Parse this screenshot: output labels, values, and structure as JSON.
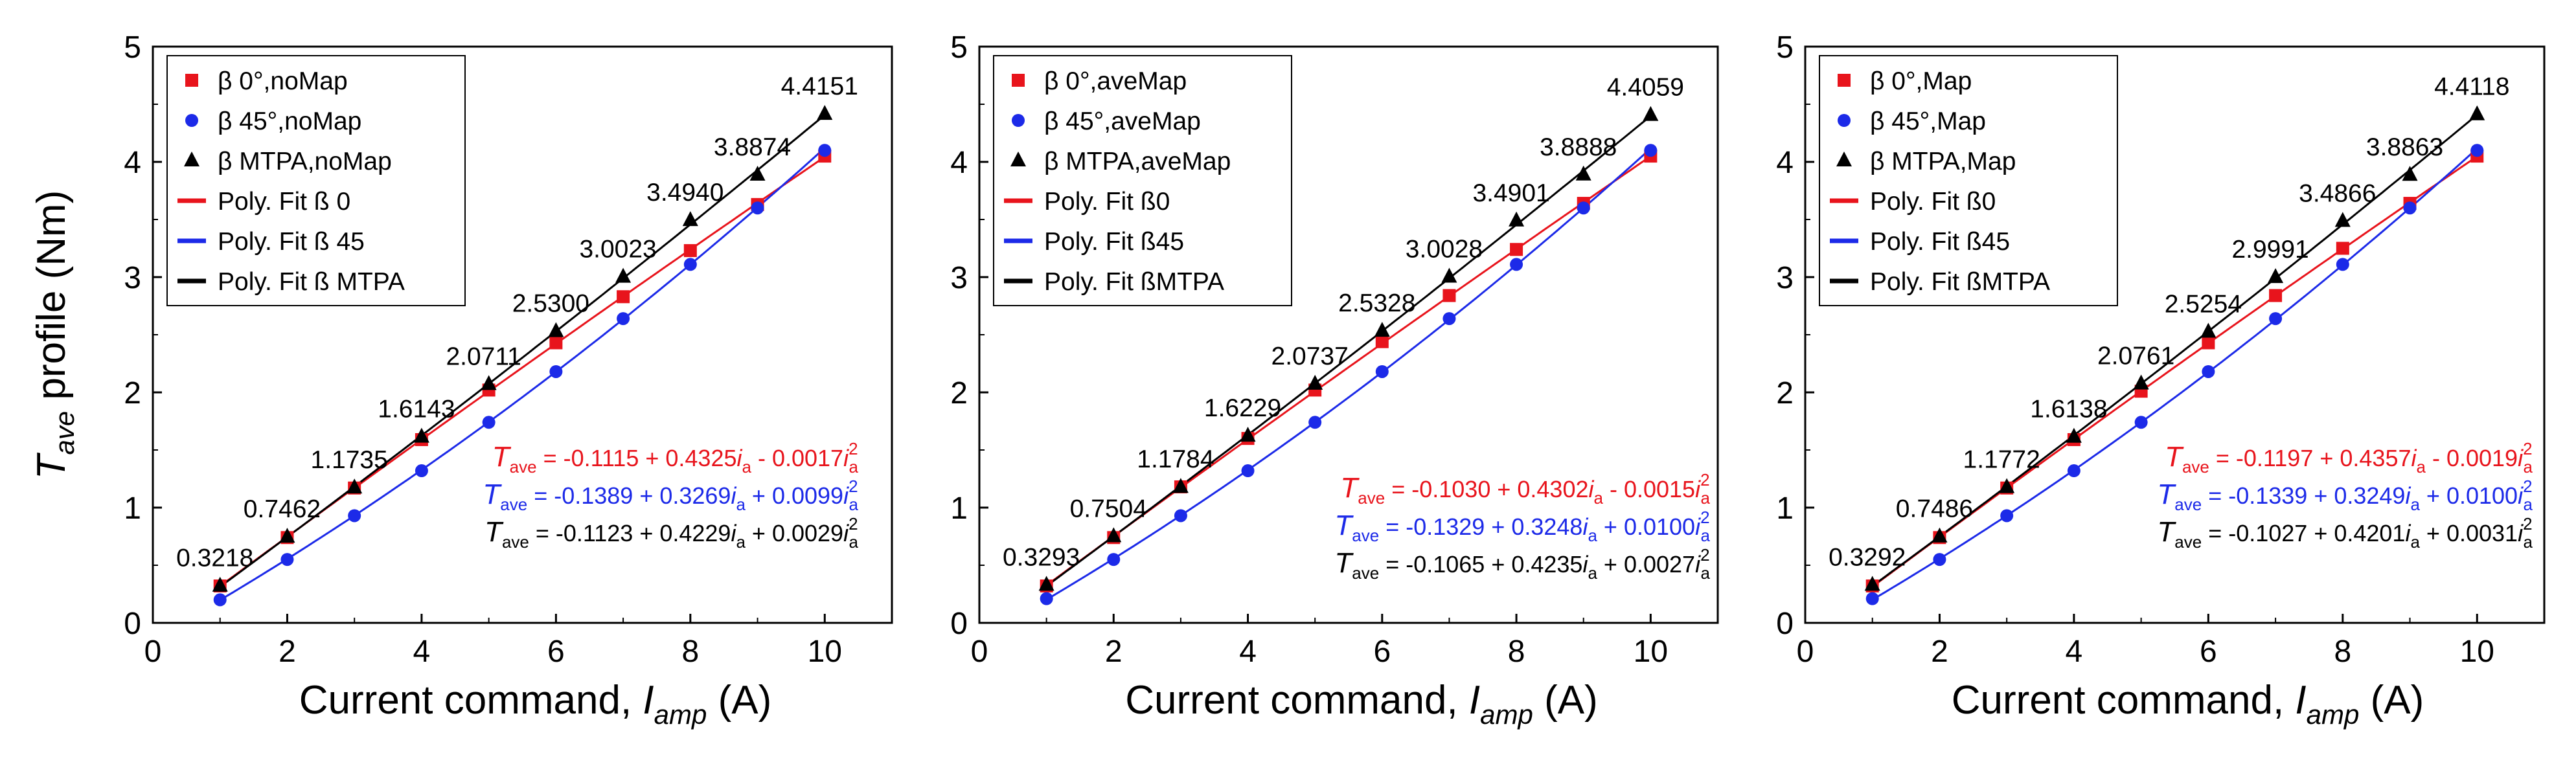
{
  "figure": {
    "ylabel_main": "T",
    "ylabel_sub": "ave",
    "ylabel_rest": " profile (Nm)",
    "xlabel_main": "Current command, ",
    "xlabel_var": "I",
    "xlabel_sub": "amp",
    "xlabel_unit": " (A)"
  },
  "chart_data": [
    {
      "type": "scatter",
      "title": "",
      "xlabel": "Current command, I_amp (A)",
      "ylabel": "T_ave profile (Nm)",
      "xlim": [
        0,
        11
      ],
      "ylim": [
        0,
        5
      ],
      "xticks": [
        "0",
        "2",
        "4",
        "6",
        "8",
        "10"
      ],
      "yticks": [
        "0",
        "1",
        "2",
        "3",
        "4",
        "5"
      ],
      "x": [
        1,
        2,
        3,
        4,
        5,
        6,
        7,
        8,
        9,
        10
      ],
      "series": [
        {
          "name": "β 0°,noMap",
          "marker": "square",
          "color": "#e8141c",
          "values": [
            0.32,
            0.74,
            1.17,
            1.59,
            2.02,
            2.43,
            2.83,
            3.23,
            3.63,
            4.05
          ]
        },
        {
          "name": "β 45°,noMap",
          "marker": "circle",
          "color": "#1c2ae8",
          "values": [
            0.2,
            0.55,
            0.93,
            1.32,
            1.74,
            2.18,
            2.64,
            3.11,
            3.6,
            4.1
          ]
        },
        {
          "name": "β MTPA,noMap",
          "marker": "triangle",
          "color": "#000000",
          "values": [
            0.3218,
            0.7462,
            1.1735,
            1.6143,
            2.0711,
            2.53,
            3.0023,
            3.494,
            3.8874,
            4.4151
          ]
        }
      ],
      "fits": [
        {
          "name": "Poly. Fit ß 0",
          "color": "#e8141c",
          "coef": [
            -0.1115,
            0.4325,
            -0.0017
          ]
        },
        {
          "name": "Poly. Fit ß 45",
          "color": "#1c2ae8",
          "coef": [
            -0.1389,
            0.3269,
            0.0099
          ]
        },
        {
          "name": "Poly. Fit ß MTPA",
          "color": "#000000",
          "coef": [
            -0.1123,
            0.4229,
            0.0029
          ]
        }
      ],
      "point_labels": [
        "0.3218",
        "0.7462",
        "1.1735",
        "1.6143",
        "2.0711",
        "2.5300",
        "3.0023",
        "3.4940",
        "3.8874",
        "4.4151"
      ],
      "equations": [
        {
          "color": "#e8141c",
          "prefix": "T",
          "sub": "ave",
          "text": " = -0.1115 + 0.4325",
          "v1": "i",
          "s1": "a",
          "text2": " - 0.0017",
          "v2": "i",
          "sup": "2",
          "s2": "a"
        },
        {
          "color": "#1c2ae8",
          "prefix": "T",
          "sub": "ave",
          "text": " = -0.1389 + 0.3269",
          "v1": "i",
          "s1": "a",
          "text2": " + 0.0099",
          "v2": "i",
          "sup": "2",
          "s2": "a"
        },
        {
          "color": "#000000",
          "prefix": "T",
          "sub": "ave",
          "text": " = -0.1123 + 0.4229",
          "v1": "i",
          "s1": "a",
          "text2": " + 0.0029",
          "v2": "i",
          "sup": "2",
          "s2": "a"
        }
      ]
    },
    {
      "type": "scatter",
      "title": "",
      "xlabel": "Current command, I_amp (A)",
      "ylabel": "",
      "xlim": [
        0,
        11
      ],
      "ylim": [
        0,
        5
      ],
      "xticks": [
        "0",
        "2",
        "4",
        "6",
        "8",
        "10"
      ],
      "yticks": [
        "0",
        "1",
        "2",
        "3",
        "4",
        "5"
      ],
      "x": [
        1,
        2,
        3,
        4,
        5,
        6,
        7,
        8,
        9,
        10
      ],
      "series": [
        {
          "name": "β 0°,aveMap",
          "marker": "square",
          "color": "#e8141c",
          "values": [
            0.32,
            0.74,
            1.18,
            1.6,
            2.02,
            2.44,
            2.84,
            3.24,
            3.64,
            4.05
          ]
        },
        {
          "name": "β 45°,aveMap",
          "marker": "circle",
          "color": "#1c2ae8",
          "values": [
            0.21,
            0.55,
            0.93,
            1.32,
            1.74,
            2.18,
            2.64,
            3.11,
            3.6,
            4.1
          ]
        },
        {
          "name": "β MTPA,aveMap",
          "marker": "triangle",
          "color": "#000000",
          "values": [
            0.3293,
            0.7504,
            1.1784,
            1.6229,
            2.0737,
            2.5328,
            3.0028,
            3.4901,
            3.8888,
            4.4059
          ]
        }
      ],
      "fits": [
        {
          "name": "Poly. Fit ß0",
          "color": "#e8141c",
          "coef": [
            -0.103,
            0.4302,
            -0.0015
          ]
        },
        {
          "name": "Poly. Fit ß45",
          "color": "#1c2ae8",
          "coef": [
            -0.1329,
            0.3248,
            0.01
          ]
        },
        {
          "name": "Poly. Fit ßMTPA",
          "color": "#000000",
          "coef": [
            -0.1065,
            0.4235,
            0.0027
          ]
        }
      ],
      "point_labels": [
        "0.3293",
        "0.7504",
        "1.1784",
        "1.6229",
        "2.0737",
        "2.5328",
        "3.0028",
        "3.4901",
        "3.8888",
        "4.4059"
      ],
      "equations": [
        {
          "color": "#e8141c",
          "prefix": "T",
          "sub": "ave",
          "text": " = -0.1030 + 0.4302",
          "v1": "i",
          "s1": "a",
          "text2": " - 0.0015",
          "v2": "i",
          "sup": "2",
          "s2": "a"
        },
        {
          "color": "#1c2ae8",
          "prefix": "T",
          "sub": "ave",
          "text": " = -0.1329 + 0.3248",
          "v1": "i",
          "s1": "a",
          "text2": " + 0.0100",
          "v2": "i",
          "sup": "2",
          "s2": "a"
        },
        {
          "color": "#000000",
          "prefix": "T",
          "sub": "ave",
          "text": " = -0.1065 + 0.4235",
          "v1": "i",
          "s1": "a",
          "text2": " + 0.0027",
          "v2": "i",
          "sup": "2",
          "s2": "a"
        }
      ]
    },
    {
      "type": "scatter",
      "title": "",
      "xlabel": "Current command, I_amp (A)",
      "ylabel": "",
      "xlim": [
        0,
        11
      ],
      "ylim": [
        0,
        5
      ],
      "xticks": [
        "0",
        "2",
        "4",
        "6",
        "8",
        "10"
      ],
      "yticks": [
        "0",
        "1",
        "2",
        "3",
        "4",
        "5"
      ],
      "x": [
        1,
        2,
        3,
        4,
        5,
        6,
        7,
        8,
        9,
        10
      ],
      "series": [
        {
          "name": "β 0°,Map",
          "marker": "square",
          "color": "#e8141c",
          "values": [
            0.32,
            0.74,
            1.17,
            1.59,
            2.01,
            2.43,
            2.84,
            3.25,
            3.64,
            4.05
          ]
        },
        {
          "name": "β 45°,Map",
          "marker": "circle",
          "color": "#1c2ae8",
          "values": [
            0.21,
            0.55,
            0.93,
            1.32,
            1.74,
            2.18,
            2.64,
            3.11,
            3.6,
            4.1
          ]
        },
        {
          "name": "β MTPA,Map",
          "marker": "triangle",
          "color": "#000000",
          "values": [
            0.3292,
            0.7486,
            1.1772,
            1.6138,
            2.0761,
            2.5254,
            2.9991,
            3.4866,
            3.8863,
            4.4118
          ]
        }
      ],
      "fits": [
        {
          "name": "Poly. Fit ß0",
          "color": "#e8141c",
          "coef": [
            -0.1197,
            0.4357,
            -0.0019
          ]
        },
        {
          "name": "Poly. Fit ß45",
          "color": "#1c2ae8",
          "coef": [
            -0.1339,
            0.3249,
            0.01
          ]
        },
        {
          "name": "Poly. Fit ßMTPA",
          "color": "#000000",
          "coef": [
            -0.1027,
            0.4201,
            0.0031
          ]
        }
      ],
      "point_labels": [
        "0.3292",
        "0.7486",
        "1.1772",
        "1.6138",
        "2.0761",
        "2.5254",
        "2.9991",
        "3.4866",
        "3.8863",
        "4.4118"
      ],
      "equations": [
        {
          "color": "#e8141c",
          "prefix": "T",
          "sub": "ave",
          "text": " = -0.1197 + 0.4357",
          "v1": "i",
          "s1": "a",
          "text2": " - 0.0019",
          "v2": "i",
          "sup": "2",
          "s2": "a"
        },
        {
          "color": "#1c2ae8",
          "prefix": "T",
          "sub": "ave",
          "text": " = -0.1339 + 0.3249",
          "v1": "i",
          "s1": "a",
          "text2": " + 0.0100",
          "v2": "i",
          "sup": "2",
          "s2": "a"
        },
        {
          "color": "#000000",
          "prefix": "T",
          "sub": "ave",
          "text": " = -0.1027 + 0.4201",
          "v1": "i",
          "s1": "a",
          "text2": " + 0.0031",
          "v2": "i",
          "sup": "2",
          "s2": "a"
        }
      ]
    }
  ]
}
